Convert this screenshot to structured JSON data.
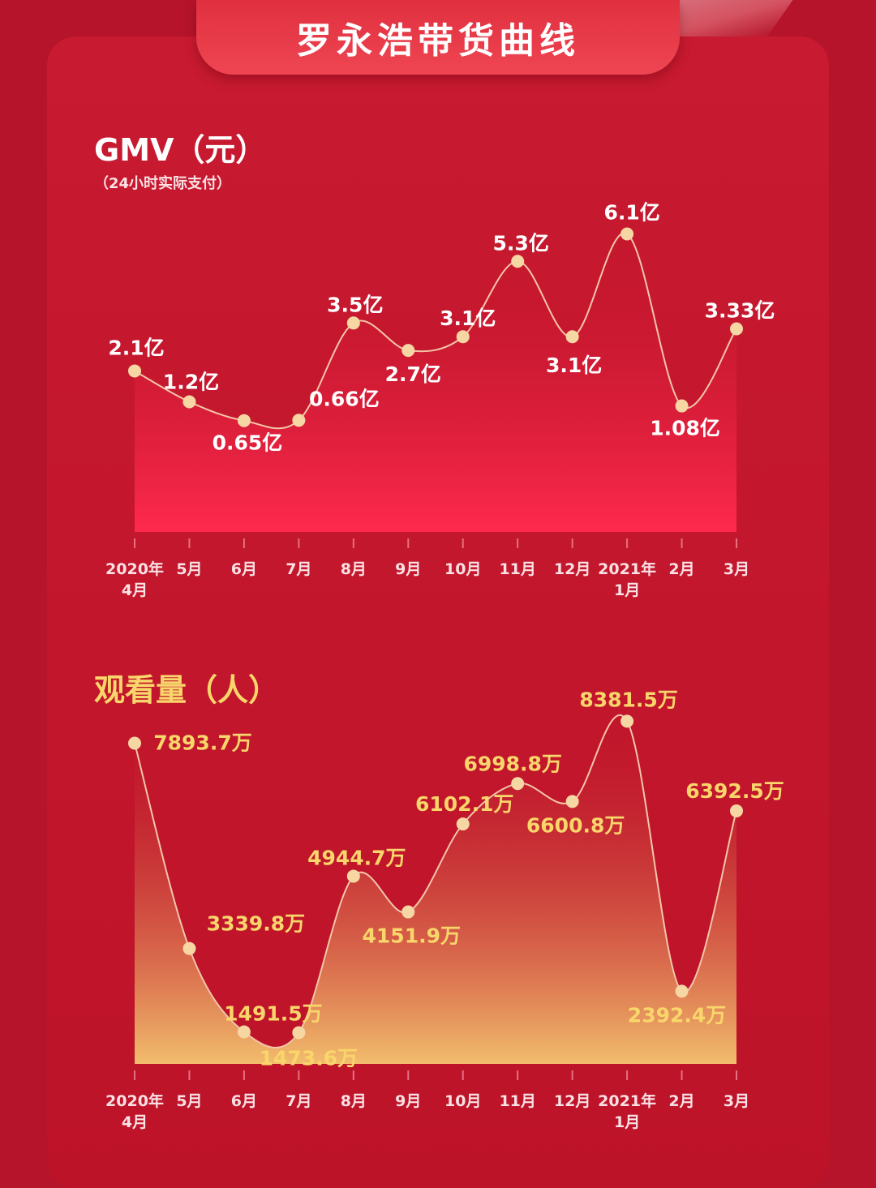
{
  "page_title": "罗永浩带货曲线",
  "colors": {
    "background": "#b5142a",
    "panel": "#c81a30",
    "gmv_text": "#ffffff",
    "viewer_text": "#f9d66b",
    "point": "#f6d7a4"
  },
  "chart_data": [
    {
      "type": "area",
      "title": "GMV（元）",
      "subtitle": "（24小时实际支付）",
      "categories": [
        "2020年\n4月",
        "5月",
        "6月",
        "7月",
        "8月",
        "9月",
        "10月",
        "11月",
        "12月",
        "2021年\n1月",
        "2月",
        "3月"
      ],
      "values": [
        2.1,
        1.2,
        0.65,
        0.66,
        3.5,
        2.7,
        3.1,
        5.3,
        3.1,
        6.1,
        1.08,
        3.33
      ],
      "data_labels": [
        "2.1亿",
        "1.2亿",
        "0.65亿",
        "0.66亿",
        "3.5亿",
        "2.7亿",
        "3.1亿",
        "5.3亿",
        "3.1亿",
        "6.1亿",
        "1.08亿",
        "3.33亿"
      ],
      "unit": "亿元",
      "ylim": [
        -2.6,
        7.2
      ],
      "grid": false,
      "fill": [
        "#bd1329",
        "#ff2a4e"
      ]
    },
    {
      "type": "area",
      "title": "观看量（人）",
      "categories": [
        "2020年\n4月",
        "5月",
        "6月",
        "7月",
        "8月",
        "9月",
        "10月",
        "11月",
        "12月",
        "2021年\n1月",
        "2月",
        "3月"
      ],
      "values": [
        7893.7,
        3339.8,
        1491.5,
        1473.6,
        4944.7,
        4151.9,
        6102.1,
        6998.8,
        6600.8,
        8381.5,
        2392.4,
        6392.5
      ],
      "data_labels": [
        "7893.7万",
        "3339.8万",
        "1491.5万",
        "1473.6万",
        "4944.7万",
        "4151.9万",
        "6102.1万",
        "6998.8万",
        "6600.8万",
        "8381.5万",
        "2392.4万",
        "6392.5万"
      ],
      "unit": "万人",
      "ylim": [
        780,
        9000
      ],
      "grid": false,
      "fill": [
        "#bd1329",
        "#f2bd6d"
      ]
    }
  ]
}
